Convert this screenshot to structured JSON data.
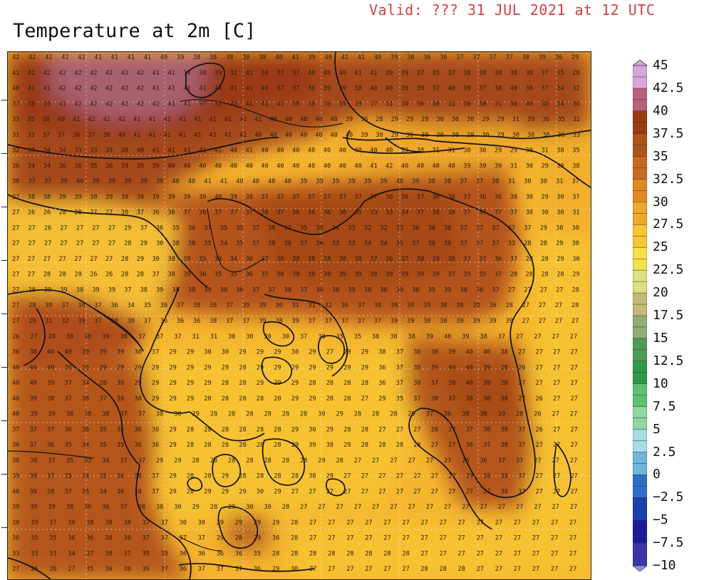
{
  "header": {
    "valid_text": "Valid: ??? 31 JUL 2021 at 12 UTC",
    "title": "Temperature at 2m [C]"
  },
  "colorbar": {
    "labels": [
      "45",
      "42.5",
      "40",
      "37.5",
      "35",
      "32.5",
      "30",
      "27.5",
      "25",
      "22.5",
      "20",
      "17.5",
      "15",
      "12.5",
      "10",
      "7.5",
      "5",
      "2.5",
      "0",
      "−2.5",
      "−5",
      "−7.5",
      "−10"
    ],
    "values": [
      45,
      42.5,
      40,
      37.5,
      35,
      32.5,
      30,
      27.5,
      25,
      22.5,
      20,
      17.5,
      15,
      12.5,
      10,
      7.5,
      5,
      2.5,
      0,
      -2.5,
      -5,
      -7.5,
      -10
    ],
    "stops": [
      {
        "v": 45,
        "c": "#d8a6d8"
      },
      {
        "v": 42.5,
        "c": "#b9607a"
      },
      {
        "v": 40,
        "c": "#9a3a12"
      },
      {
        "v": 37.5,
        "c": "#b0541a"
      },
      {
        "v": 35,
        "c": "#c76a20"
      },
      {
        "v": 32.5,
        "c": "#df8a22"
      },
      {
        "v": 30,
        "c": "#eea82a"
      },
      {
        "v": 27.5,
        "c": "#f7c632"
      },
      {
        "v": 25,
        "c": "#f3e04a"
      },
      {
        "v": 22.5,
        "c": "#dde07e"
      },
      {
        "v": 20,
        "c": "#c6b87a"
      },
      {
        "v": 17.5,
        "c": "#8fae72"
      },
      {
        "v": 15,
        "c": "#4f9a58"
      },
      {
        "v": 12.5,
        "c": "#2e9a4a"
      },
      {
        "v": 10,
        "c": "#5ec070"
      },
      {
        "v": 7.5,
        "c": "#8fd6a0"
      },
      {
        "v": 5,
        "c": "#a8dce6"
      },
      {
        "v": 2.5,
        "c": "#6eb6dc"
      },
      {
        "v": 0,
        "c": "#2f6fc8"
      },
      {
        "v": -2.5,
        "c": "#1a3fb0"
      },
      {
        "v": -5,
        "c": "#1a1a9a"
      },
      {
        "v": -7.5,
        "c": "#3a36a8"
      },
      {
        "v": -10,
        "c": "#9e8ee0"
      }
    ]
  },
  "grid_rows": [
    "42 42 42 42 42 41 41 41 41 40 39 38 38 38 38 38 40 41 39 40 41 41 40 39 38 36 36 37 37 37 37 38 39 36 29",
    "41 41 42 42 42 42 42 42 42 41 41 39 38 39 32 41 38 37 37 40 40 40 41 41 39 39 37 35 37 38 38 38 38 38 37 35 28",
    "40 41 41 42 42 42 42 42 42 41 41 41 41 40 41 41 40 37 37 38 39 39 38 40 40 39 39 37 40 39 37 38 40 38 37 34 32",
    "37 38 39 41 42 42 42 42 42 42 41 41 37 32 33 41 41 41 38 38 38 39 39 37 31 30 30 30 31 30 30 31 30 40 38 34 30",
    "33 35 38 40 41 42 42 42 41 41 41 41 41 41 41 41 41 40 40 40 40 40 39 36 28 29 29 29 30 30 30 29 29 31 39 36 35 32",
    "31 33 37 37 36 37 38 40 41 41 41 41 41 41 41 41 40 40 40 40 40 40 40 39 30 29 30 30 30 30 29 30 29 30 38 38 36 33",
    "32 33 34 34 33 33 35 38 40 41 41 41 41 41 40 41 40 40 40 40 40 40 40 40 40 39 38 31 31 30 30 29 29 30 31 38 35",
    "36 34 34 36 36 35 36 39 39 39 40 40 40 40 40 40 40 40 40 40 40 40 40 41 42 40 40 40 40 39 39 39 31 30 29 30 38",
    "38 37 37 39 40 39 39 39 39 39 40 40 41 41 40 40 40 40 39 39 39 39 39 39 40 39 38 38 37 37 38 31 30 30 31 37",
    "27 38 38 39 39 38 39 38 38 39 39 39 39 40 39 38 37 37 37 37 37 37 37 37 36 36 37 38 38 37 36 36 38 30 29 30 37",
    "27 26 26 28 28 27 27 30 37 36 36 37 36 37 37 37 38 37 36 36 36 36 35 33 33 34 37 38 38 37 37 37 37 38 30 30 31",
    "27 27 26 27 27 27 27 29 37 36 35 36 37 35 35 37 38 37 35 34 34 33 32 32 33 36 38 38 37 37 37 37 37 29 30 30",
    "27 27 27 27 27 27 27 28 29 30 38 38 35 34 35 37 38 38 37 36 33 33 34 34 35 37 38 38 37 37 37 33 28 28 29 30",
    "27 27 27 27 27 27 27 28 29 30 38 39 35 34 34 36 37 38 38 38 38 38 38 37 36 37 38 39 38 37 37 36 37 28 28 29 30",
    "27 27 28 28 28 26 26 28 28 37 38 39 36 35 35 36 37 38 39 39 39 39 39 38 39 39 39 39 37 35 35 37 28 28 28 28 29",
    "27 28 39 39 38 39 39 37 38 39 38 38 39 38 38 37 37 38 37 38 38 39 38 38 39 38 39 39 38 36 37 27 27 27 27 28",
    "27 28 39 37 36 37 36 34 35 36 37 38 38 37 39 39 36 31 31 32 36 37 38 39 39 39 38 38 39 36 28 27 27 27 28",
    "27 29 31 32 39 37 38 38 37 36 36 36 38 37 37 39 38 39 37 37 37 37 37 39 39 38 38 39 39 39 39 27 27 27 27",
    "26 27 28 30 30 39 38 37 37 37 31 31 30 30 30 30 37 38 35 35 38 38 38 39 40 39 38 37 27 27 27 27",
    "36 38 40 40 39 39 39 38 37 29 29 30 30 29 29 29 30 29 27 29 29 38 37 38 38 39 40 40 38 27 27 27 27",
    "40 40 40 38 35 29 29 29 29 29 29 29 29 28 29 29 29 29 29 29 29 36 37 38 39 40 40 39 28 26 27 27 27",
    "40 40 39 37 34 28 30 29 29 29 29 29 28 28 29 29 29 28 28 28 28 36 37 38 37 38 40 39 28 27 27 27 27",
    "40 39 38 37 36 37 38 30 29 29 29 28 28 28 28 28 29 29 28 28 27 29 35 37 38 37 38 38 38 27 26 27 27",
    "40 39 39 38 38 38 37 37 38 30 29 28 28 28 28 28 28 30 29 28 28 28 29 37 36 38 38 39 28 26 27 27",
    "37 37 37 36 36 35 35 36 30 29 28 28 28 28 28 28 29 30 29 28 28 27 27 27 26 27 37 38 38 37 26 27 27",
    "36 37 36 35 34 35 35 36 36 29 28 28 28 28 28 28 29 39 38 29 28 28 28 28 27 27 36 37 38 37 27 27 27",
    "38 38 37 35 33 34 37 37 29 29 28 28 28 28 28 28 28 29 28 27 27 27 27 27 27 26 36 37 37 27 27 27",
    "39 39 37 35 34 35 36 38 37 29 28 28 29 28 28 28 28 38 29 27 27 27 27 27 27 27 29 38 38 37 27 27 27",
    "40 39 38 37 35 34 36 38 37 29 28 29 29 29 30 29 27 27 27 27 27 27 27 27 27 27 27 27 38 37 27 27 27",
    "39 39 39 38 36 36 37 38 38 30 29 28 29 30 30 28 27 27 27 27 27 27 27 27 27 27 27 27 27 27 27 27",
    "38 39 37 38 38 38 38 37 37 30 30 29 29 29 29 28 27 27 27 27 27 27 27 27 27 27 27 27 27 27 27",
    "36 35 35 36 36 38 38 37 37 37 37 29 28 29 36 28 27 27 27 27 27 27 27 27 27 27 27 27 27 27 27",
    "33 33 33 34 37 38 37 39 39 36 36 36 36 35 28 28 28 28 28 28 28 28 27 27 27 27 27 27 27 27 27",
    "27 26 26 27 35 36 38 39 37 36 37 37 37 36 29 30 27 27 27 27 27 27 28 28 28 27 27 27 27 27 27"
  ]
}
